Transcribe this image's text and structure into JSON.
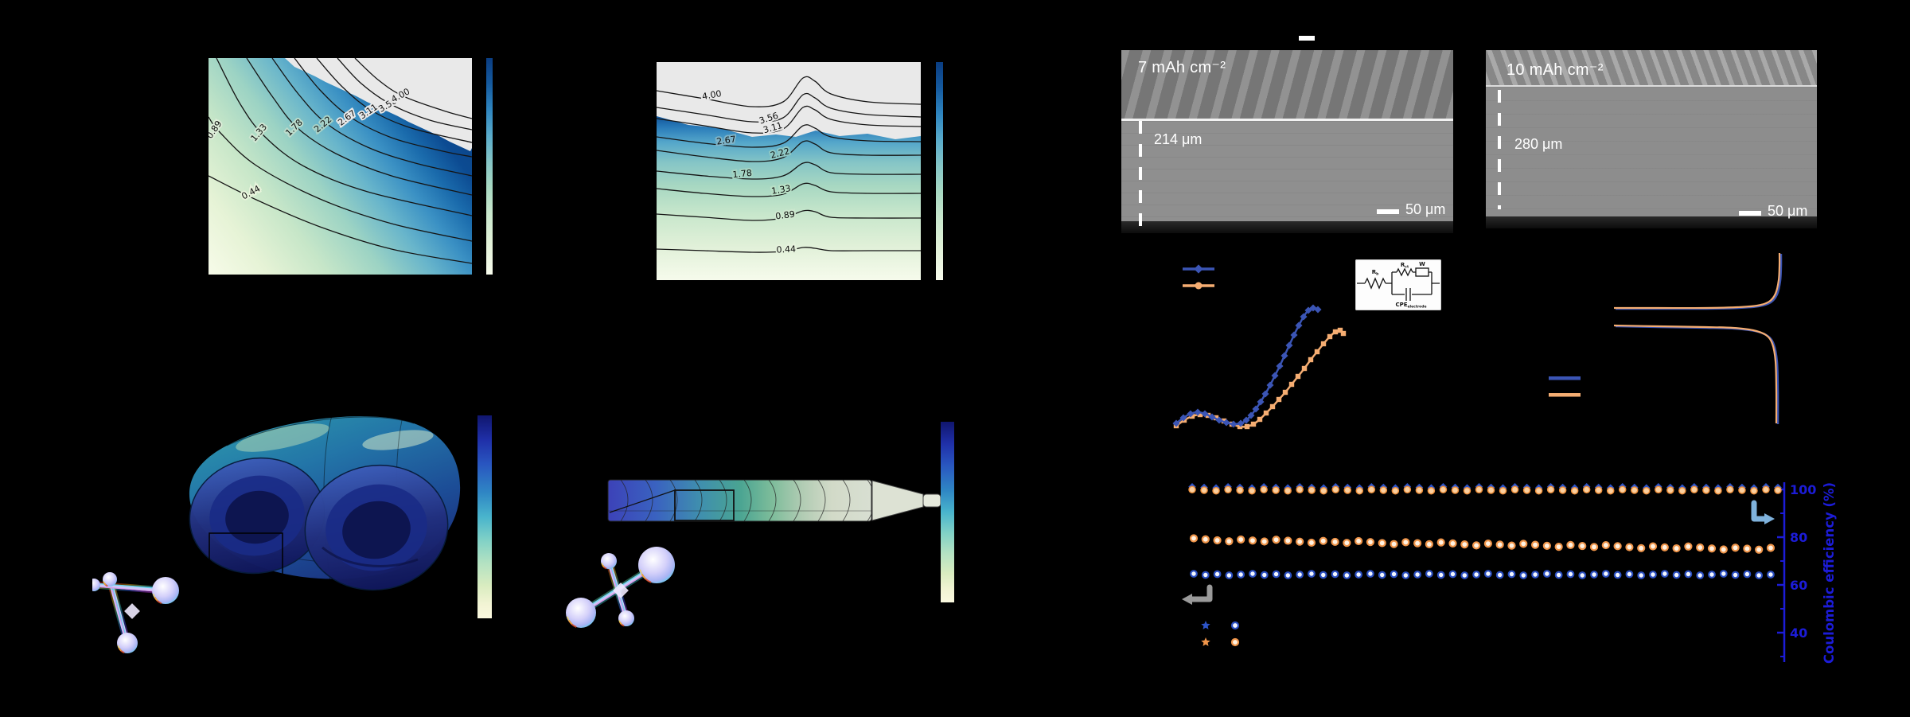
{
  "figure": {
    "background": "#000000",
    "sem_a": {
      "title": "7 mAh cm⁻²",
      "thickness": "214 μm",
      "scalebar": "50 μm"
    },
    "sem_b": {
      "title": "10 mAh cm⁻²",
      "thickness": "280 μm",
      "scalebar": "50 μm"
    },
    "circuit": {
      "r1": "R",
      "r1_sub": "b",
      "r2": "R",
      "r2_sub": "ct",
      "w": "W",
      "cpe": "CPE",
      "cpe_sub": "electrode"
    },
    "colors": {
      "series_blue": "#3b55b5",
      "series_orange": "#f5ad72",
      "ce_axis_blue": "#1c1cd8",
      "arrow_gray": "#9a9a9a",
      "arrow_lightblue": "#7fb2dc",
      "contour_gray_region": "#e9e9e9"
    }
  },
  "chart_data": [
    {
      "id": "contour_left",
      "type": "contour",
      "title": "",
      "levels": [
        0.44,
        0.89,
        1.33,
        1.78,
        2.22,
        2.67,
        3.11,
        3.56,
        4.0
      ],
      "level_labels": [
        "0.44",
        "0.89",
        "1.33",
        "1.78",
        "2.22",
        "2.67",
        "3.11",
        "3.56",
        "4.00"
      ],
      "colormap": "pale-green to deep blue, saturated gray above max",
      "shape": "arcs concave toward top-right corner"
    },
    {
      "id": "contour_right",
      "type": "contour",
      "title": "",
      "levels": [
        0.44,
        0.89,
        1.33,
        1.78,
        2.22,
        2.67,
        3.11,
        3.56,
        4.0
      ],
      "level_labels": [
        "0.44",
        "0.89",
        "1.33",
        "1.78",
        "2.22",
        "2.67",
        "3.11",
        "3.56",
        "4.00"
      ],
      "colormap": "pale-green to deep blue, saturated gray above max",
      "shape": "horizontal wavy lines with central bump"
    },
    {
      "id": "nyquist",
      "type": "scatter",
      "note": "axis labels not visible; coordinates are panel-relative pixels",
      "series": [
        {
          "name": "blue",
          "marker": "diamond",
          "color": "#3b55b5",
          "points": [
            [
              26,
              210
            ],
            [
              35,
              203
            ],
            [
              44,
              198
            ],
            [
              53,
              196
            ],
            [
              62,
              198
            ],
            [
              71,
              202
            ],
            [
              80,
              206
            ],
            [
              89,
              209
            ],
            [
              98,
              211
            ],
            [
              107,
              210
            ],
            [
              114,
              206
            ],
            [
              120,
              200
            ],
            [
              126,
              192
            ],
            [
              132,
              183
            ],
            [
              138,
              173
            ],
            [
              144,
              162
            ],
            [
              150,
              150
            ],
            [
              156,
              138
            ],
            [
              162,
              125
            ],
            [
              168,
              112
            ],
            [
              174,
              99
            ],
            [
              180,
              87
            ],
            [
              186,
              76
            ],
            [
              192,
              68
            ],
            [
              198,
              65
            ],
            [
              204,
              67
            ]
          ]
        },
        {
          "name": "orange",
          "marker": "square",
          "color": "#f5ad72",
          "points": [
            [
              26,
              213
            ],
            [
              36,
              206
            ],
            [
              46,
              201
            ],
            [
              56,
              199
            ],
            [
              66,
              200
            ],
            [
              76,
              203
            ],
            [
              86,
              207
            ],
            [
              96,
              211
            ],
            [
              106,
              214
            ],
            [
              115,
              214
            ],
            [
              123,
              211
            ],
            [
              131,
              205
            ],
            [
              139,
              197
            ],
            [
              147,
              189
            ],
            [
              155,
              180
            ],
            [
              163,
              171
            ],
            [
              171,
              161
            ],
            [
              179,
              151
            ],
            [
              187,
              141
            ],
            [
              195,
              130
            ],
            [
              203,
              120
            ],
            [
              211,
              110
            ],
            [
              219,
              101
            ],
            [
              226,
              95
            ],
            [
              232,
              93
            ],
            [
              236,
              97
            ]
          ]
        }
      ]
    },
    {
      "id": "voltage_profile",
      "type": "line",
      "note": "charge/discharge curves, blue and orange overlapped; panel-relative pixels",
      "series": [
        {
          "name": "charge_top",
          "points": [
            [
              5,
              83
            ],
            [
              60,
              83
            ],
            [
              120,
              83
            ],
            [
              160,
              82
            ],
            [
              185,
              80
            ],
            [
              200,
              75
            ],
            [
              208,
              65
            ],
            [
              212,
              48
            ],
            [
              213,
              30
            ],
            [
              213,
              14
            ]
          ]
        },
        {
          "name": "discharge_bottom",
          "points": [
            [
              5,
              105
            ],
            [
              60,
              106
            ],
            [
              120,
              107
            ],
            [
              155,
              108
            ],
            [
              180,
              111
            ],
            [
              196,
              117
            ],
            [
              204,
              128
            ],
            [
              208,
              150
            ],
            [
              209,
              185
            ],
            [
              209,
              228
            ]
          ]
        }
      ],
      "colors": [
        "#3b55b5",
        "#f5ad72"
      ]
    },
    {
      "id": "cycling",
      "type": "scatter",
      "right_axis": {
        "label": "Coulombic efficiency (%)",
        "ticks": [
          100,
          80,
          60,
          40
        ],
        "color": "#1c1cd8"
      },
      "n_points": 50,
      "series": [
        {
          "name": "coulombic_efficiency",
          "marker": "blue-diamond + orange-circle",
          "approx_value_pct": 99,
          "trend": "flat"
        },
        {
          "name": "capacity_orange",
          "marker": "orange-circle",
          "trend": "slight decline"
        },
        {
          "name": "capacity_blue",
          "marker": "blue-circle",
          "trend": "flat"
        }
      ]
    }
  ]
}
